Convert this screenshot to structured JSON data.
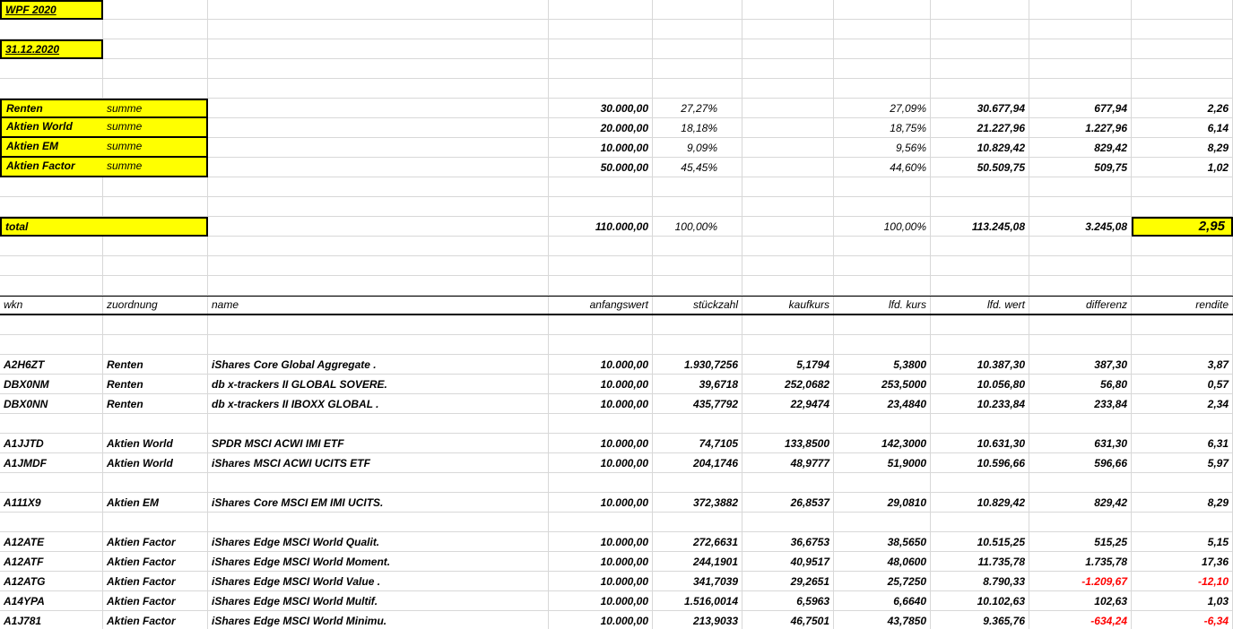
{
  "workbook": {
    "title": "WPF 2020",
    "date": "31.12.2020"
  },
  "summary": {
    "sublabel": "summe",
    "rows": [
      {
        "label": "Renten",
        "anfangswert": "30.000,00",
        "anteil_soll": "27,27%",
        "anteil_ist": "27,09%",
        "lfd_wert": "30.677,94",
        "differenz": "677,94",
        "rendite": "2,26"
      },
      {
        "label": "Aktien World",
        "anfangswert": "20.000,00",
        "anteil_soll": "18,18%",
        "anteil_ist": "18,75%",
        "lfd_wert": "21.227,96",
        "differenz": "1.227,96",
        "rendite": "6,14"
      },
      {
        "label": "Aktien EM",
        "anfangswert": "10.000,00",
        "anteil_soll": "9,09%",
        "anteil_ist": "9,56%",
        "lfd_wert": "10.829,42",
        "differenz": "829,42",
        "rendite": "8,29"
      },
      {
        "label": "Aktien Factor",
        "anfangswert": "50.000,00",
        "anteil_soll": "45,45%",
        "anteil_ist": "44,60%",
        "lfd_wert": "50.509,75",
        "differenz": "509,75",
        "rendite": "1,02"
      }
    ],
    "total": {
      "label": "total",
      "anfangswert": "110.000,00",
      "anteil_soll": "100,00%",
      "anteil_ist": "100,00%",
      "lfd_wert": "113.245,08",
      "differenz": "3.245,08",
      "rendite": "2,95"
    }
  },
  "table": {
    "headers": [
      "wkn",
      "zuordnung",
      "name",
      "anfangswert",
      "stückzahl",
      "kaufkurs",
      "lfd. kurs",
      "lfd. wert",
      "differenz",
      "rendite"
    ],
    "groups": [
      [
        {
          "wkn": "A2H6ZT",
          "zuordnung": "Renten",
          "name": "iShares Core Global Aggregate .",
          "anfangswert": "10.000,00",
          "stueckzahl": "1.930,7256",
          "kaufkurs": "5,1794",
          "lfd_kurs": "5,3800",
          "lfd_wert": "10.387,30",
          "differenz": "387,30",
          "rendite": "3,87"
        },
        {
          "wkn": "DBX0NM",
          "zuordnung": "Renten",
          "name": "db x-trackers II GLOBAL SOVERE.",
          "anfangswert": "10.000,00",
          "stueckzahl": "39,6718",
          "kaufkurs": "252,0682",
          "lfd_kurs": "253,5000",
          "lfd_wert": "10.056,80",
          "differenz": "56,80",
          "rendite": "0,57"
        },
        {
          "wkn": "DBX0NN",
          "zuordnung": "Renten",
          "name": "db x-trackers II IBOXX GLOBAL .",
          "anfangswert": "10.000,00",
          "stueckzahl": "435,7792",
          "kaufkurs": "22,9474",
          "lfd_kurs": "23,4840",
          "lfd_wert": "10.233,84",
          "differenz": "233,84",
          "rendite": "2,34"
        }
      ],
      [
        {
          "wkn": "A1JJTD",
          "zuordnung": "Aktien World",
          "name": "SPDR MSCI ACWI IMI ETF",
          "anfangswert": "10.000,00",
          "stueckzahl": "74,7105",
          "kaufkurs": "133,8500",
          "lfd_kurs": "142,3000",
          "lfd_wert": "10.631,30",
          "differenz": "631,30",
          "rendite": "6,31"
        },
        {
          "wkn": "A1JMDF",
          "zuordnung": "Aktien World",
          "name": "iShares MSCI ACWI UCITS ETF",
          "anfangswert": "10.000,00",
          "stueckzahl": "204,1746",
          "kaufkurs": "48,9777",
          "lfd_kurs": "51,9000",
          "lfd_wert": "10.596,66",
          "differenz": "596,66",
          "rendite": "5,97"
        }
      ],
      [
        {
          "wkn": "A111X9",
          "zuordnung": "Aktien EM",
          "name": "iShares Core MSCI EM IMI UCITS.",
          "anfangswert": "10.000,00",
          "stueckzahl": "372,3882",
          "kaufkurs": "26,8537",
          "lfd_kurs": "29,0810",
          "lfd_wert": "10.829,42",
          "differenz": "829,42",
          "rendite": "8,29"
        }
      ],
      [
        {
          "wkn": "A12ATE",
          "zuordnung": "Aktien Factor",
          "name": "iShares Edge MSCI World Qualit.",
          "anfangswert": "10.000,00",
          "stueckzahl": "272,6631",
          "kaufkurs": "36,6753",
          "lfd_kurs": "38,5650",
          "lfd_wert": "10.515,25",
          "differenz": "515,25",
          "rendite": "5,15"
        },
        {
          "wkn": "A12ATF",
          "zuordnung": "Aktien Factor",
          "name": "iShares Edge MSCI World Moment.",
          "anfangswert": "10.000,00",
          "stueckzahl": "244,1901",
          "kaufkurs": "40,9517",
          "lfd_kurs": "48,0600",
          "lfd_wert": "11.735,78",
          "differenz": "1.735,78",
          "rendite": "17,36"
        },
        {
          "wkn": "A12ATG",
          "zuordnung": "Aktien Factor",
          "name": "iShares Edge MSCI World Value .",
          "anfangswert": "10.000,00",
          "stueckzahl": "341,7039",
          "kaufkurs": "29,2651",
          "lfd_kurs": "25,7250",
          "lfd_wert": "8.790,33",
          "differenz": "-1.209,67",
          "rendite": "-12,10"
        },
        {
          "wkn": "A14YPA",
          "zuordnung": "Aktien Factor",
          "name": "iShares Edge MSCI World Multif.",
          "anfangswert": "10.000,00",
          "stueckzahl": "1.516,0014",
          "kaufkurs": "6,5963",
          "lfd_kurs": "6,6640",
          "lfd_wert": "10.102,63",
          "differenz": "102,63",
          "rendite": "1,03"
        },
        {
          "wkn": "A1J781",
          "zuordnung": "Aktien Factor",
          "name": "iShares Edge MSCI World Minimu.",
          "anfangswert": "10.000,00",
          "stueckzahl": "213,9033",
          "kaufkurs": "46,7501",
          "lfd_kurs": "43,7850",
          "lfd_wert": "9.365,76",
          "differenz": "-634,24",
          "rendite": "-6,34"
        }
      ]
    ]
  },
  "colors": {
    "highlight": "#ffff00",
    "negative": "#ff0000",
    "gridline": "#d8d8d8"
  }
}
